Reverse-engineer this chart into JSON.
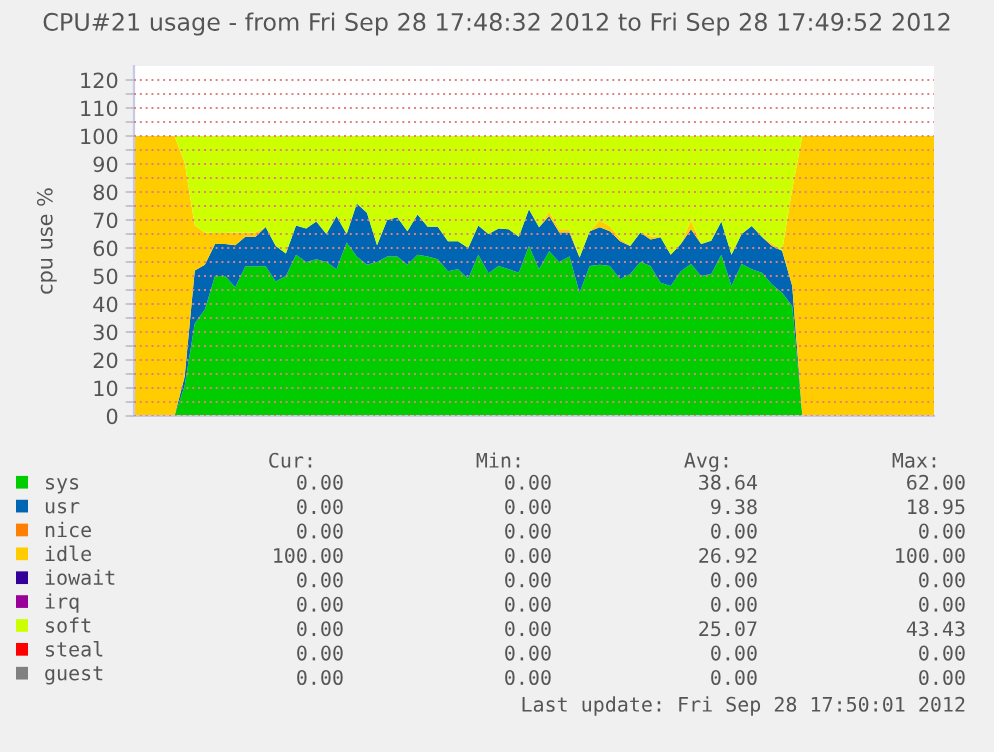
{
  "chart_data": {
    "type": "area",
    "stacked": true,
    "title": "CPU#21 usage - from Fri Sep 28 17:48:32 2012 to Fri Sep 28 17:49:52 2012",
    "ylabel": "cpu use %",
    "categories": [
      null,
      null,
      null,
      null,
      null,
      null,
      null,
      null,
      null,
      null,
      null,
      null,
      null,
      null,
      null,
      null,
      null,
      null,
      null,
      null,
      null,
      null,
      null,
      null,
      null,
      null,
      null,
      null,
      null,
      null,
      null,
      null,
      null,
      null,
      null,
      null,
      null,
      null,
      null,
      null,
      null,
      null,
      null,
      null,
      null,
      null,
      null,
      null,
      null,
      null,
      null,
      null,
      null,
      null,
      null,
      null,
      null,
      null,
      null,
      null,
      null,
      null,
      null,
      null,
      null,
      null,
      null,
      null,
      null,
      null,
      null,
      null,
      null,
      null,
      null,
      null,
      null,
      null,
      null,
      null
    ],
    "ylim": [
      0,
      125
    ],
    "yticks": [
      0,
      {
        "value": 5,
        "label": null
      },
      10,
      {
        "value": 15,
        "label": null
      },
      20,
      {
        "value": 25,
        "label": null
      },
      30,
      {
        "value": 35,
        "label": null
      },
      40,
      {
        "value": 45,
        "label": null
      },
      50,
      {
        "value": 55,
        "label": null
      },
      60,
      {
        "value": 65,
        "label": null
      },
      70,
      {
        "value": 75,
        "label": null
      },
      80,
      {
        "value": 85,
        "label": null
      },
      90,
      {
        "value": 95,
        "label": null
      },
      100,
      {
        "value": 105,
        "label": null
      },
      110,
      {
        "value": 115,
        "label": null
      },
      120
    ],
    "tick_labels": "y",
    "grid": "y",
    "legend": "bottom",
    "series": [
      {
        "name": "sys",
        "color": "#00cc00",
        "values": [
          0,
          0,
          0,
          0,
          0,
          10.7,
          33,
          38,
          50,
          50,
          46,
          53.5,
          53.5,
          53.5,
          48,
          50,
          57.6,
          55,
          56,
          55,
          52.4,
          62,
          57,
          54,
          55,
          57,
          57,
          54,
          57.6,
          57,
          56,
          51.7,
          52.4,
          49,
          57.6,
          51,
          53.6,
          52.4,
          51.2,
          60.7,
          52.4,
          58.8,
          55,
          57,
          44,
          53.6,
          54,
          53.6,
          48.8,
          50.7,
          55,
          53.6,
          47.6,
          46.4,
          51.7,
          54.3,
          50,
          50.7,
          57.6,
          46.4,
          54.3,
          52.4,
          51.2,
          47,
          44,
          39.3,
          0,
          0,
          0,
          0,
          0,
          0,
          0,
          0,
          0,
          0,
          0,
          0,
          0,
          0
        ]
      },
      {
        "name": "usr",
        "color": "#0066b3",
        "values": [
          0,
          0,
          0,
          0,
          0,
          3.3,
          19,
          16,
          11.4,
          11.4,
          15,
          10.5,
          10.5,
          14,
          12.7,
          8,
          10.4,
          12,
          13.5,
          10,
          19,
          3,
          18.9,
          18.6,
          6,
          13,
          14,
          12,
          14.4,
          10.6,
          11.6,
          10.7,
          10,
          11,
          10.4,
          14,
          13.4,
          14.3,
          12.8,
          13.1,
          15,
          12.6,
          10.5,
          8.5,
          12.6,
          12.4,
          13.4,
          12.4,
          13.6,
          10,
          10.5,
          9.4,
          16.2,
          11.2,
          9.7,
          12.4,
          11.4,
          11.9,
          11.9,
          11.2,
          10.7,
          15.5,
          12.8,
          13.7,
          15,
          7.1,
          0,
          0,
          0,
          0,
          0,
          0,
          0,
          0,
          0,
          0,
          0,
          0,
          0,
          0
        ]
      },
      {
        "name": "nice",
        "color": "#ff8000",
        "values": [
          null,
          null,
          null,
          null,
          null,
          null,
          null,
          null,
          null,
          null,
          null,
          null,
          null,
          null,
          null,
          null,
          null,
          null,
          null,
          null,
          null,
          null,
          null,
          null,
          null,
          null,
          null,
          null,
          null,
          null,
          null,
          null,
          null,
          null,
          null,
          null,
          null,
          null,
          null,
          null,
          null,
          null,
          null,
          null,
          null,
          null,
          null,
          null,
          null,
          null,
          null,
          null,
          null,
          null,
          null,
          null,
          null,
          null,
          null,
          null,
          null,
          null,
          null,
          null,
          null,
          null,
          null,
          null,
          null,
          null,
          null,
          null,
          null,
          null,
          null,
          null,
          null,
          null,
          null,
          null
        ]
      },
      {
        "name": "idle",
        "color": "#ffcc00",
        "values": [
          100,
          100,
          100,
          100,
          100,
          76.5,
          16,
          11.5,
          4,
          4,
          4.5,
          1.5,
          1.5,
          0,
          0,
          0,
          0,
          0,
          0,
          0,
          0,
          0,
          0,
          0,
          0,
          0,
          0,
          0,
          0,
          0,
          0,
          0,
          0,
          0,
          0,
          0,
          0,
          0,
          0,
          0,
          0,
          1.6,
          1.2,
          1.2,
          0,
          0,
          2.4,
          1.8,
          1,
          0,
          0,
          1.2,
          0,
          0,
          0,
          3.1,
          0,
          0,
          0,
          0,
          0,
          0,
          0,
          1,
          0,
          34.6,
          100,
          100,
          100,
          100,
          100,
          100,
          100,
          100,
          100,
          100,
          100,
          100,
          100,
          100
        ]
      },
      {
        "name": "iowait",
        "color": "#330099",
        "values": [
          null,
          null,
          null,
          null,
          null,
          null,
          null,
          null,
          null,
          null,
          null,
          null,
          null,
          null,
          null,
          null,
          null,
          null,
          null,
          null,
          null,
          null,
          null,
          null,
          null,
          null,
          null,
          null,
          null,
          null,
          null,
          null,
          null,
          null,
          null,
          null,
          null,
          null,
          null,
          null,
          null,
          null,
          null,
          null,
          null,
          null,
          null,
          null,
          null,
          null,
          null,
          null,
          null,
          null,
          null,
          null,
          null,
          null,
          null,
          null,
          null,
          null,
          null,
          null,
          null,
          null,
          null,
          null,
          null,
          null,
          null,
          null,
          null,
          null,
          null,
          null,
          null,
          null,
          null,
          null
        ]
      },
      {
        "name": "irq",
        "color": "#990099",
        "values": [
          null,
          null,
          null,
          null,
          null,
          null,
          null,
          null,
          null,
          null,
          null,
          null,
          null,
          null,
          null,
          null,
          null,
          null,
          null,
          null,
          null,
          null,
          null,
          null,
          null,
          null,
          null,
          null,
          null,
          null,
          null,
          null,
          null,
          null,
          null,
          null,
          null,
          null,
          null,
          null,
          null,
          null,
          null,
          null,
          null,
          null,
          null,
          null,
          null,
          null,
          null,
          null,
          null,
          null,
          null,
          null,
          null,
          null,
          null,
          null,
          null,
          null,
          null,
          null,
          null,
          null,
          null,
          null,
          null,
          null,
          null,
          null,
          null,
          null,
          null,
          null,
          null,
          null,
          null,
          null
        ]
      },
      {
        "name": "soft",
        "color": "#ccff00",
        "values": [
          0,
          0,
          0,
          0,
          0,
          9.5,
          32,
          34.5,
          34.6,
          34.6,
          34.5,
          34.5,
          34.5,
          32.5,
          39.3,
          42,
          32,
          33,
          30.5,
          35,
          28.6,
          35,
          24.1,
          27.4,
          39,
          30,
          29,
          34,
          28,
          32.4,
          32.4,
          37.6,
          37.6,
          40,
          32,
          35,
          33,
          33.3,
          36,
          26.2,
          32.6,
          27,
          33.3,
          33.3,
          43.4,
          34,
          30.2,
          32.2,
          36.6,
          39.3,
          34.5,
          35.8,
          36.2,
          42.4,
          38.6,
          30.2,
          38.6,
          37.4,
          30.5,
          42.4,
          35,
          32.1,
          36,
          38.3,
          41,
          19,
          0,
          0,
          0,
          0,
          0,
          0,
          0,
          0,
          0,
          0,
          0,
          0,
          0,
          0
        ]
      },
      {
        "name": "steal",
        "color": "#ff0000",
        "values": [
          null,
          null,
          null,
          null,
          null,
          null,
          null,
          null,
          null,
          null,
          null,
          null,
          null,
          null,
          null,
          null,
          null,
          null,
          null,
          null,
          null,
          null,
          null,
          null,
          null,
          null,
          null,
          null,
          null,
          null,
          null,
          null,
          null,
          null,
          null,
          null,
          null,
          null,
          null,
          null,
          null,
          null,
          null,
          null,
          null,
          null,
          null,
          null,
          null,
          null,
          null,
          null,
          null,
          null,
          null,
          null,
          null,
          null,
          null,
          null,
          null,
          null,
          null,
          null,
          null,
          null,
          null,
          null,
          null,
          null,
          null,
          null,
          null,
          null,
          null,
          null,
          null,
          null,
          null,
          null
        ]
      },
      {
        "name": "guest",
        "color": "#808080",
        "values": [
          null,
          null,
          null,
          null,
          null,
          null,
          null,
          null,
          null,
          null,
          null,
          null,
          null,
          null,
          null,
          null,
          null,
          null,
          null,
          null,
          null,
          null,
          null,
          null,
          null,
          null,
          null,
          null,
          null,
          null,
          null,
          null,
          null,
          null,
          null,
          null,
          null,
          null,
          null,
          null,
          null,
          null,
          null,
          null,
          null,
          null,
          null,
          null,
          null,
          null,
          null,
          null,
          null,
          null,
          null,
          null,
          null,
          null,
          null,
          null,
          null,
          null,
          null,
          null,
          null,
          null,
          null,
          null,
          null,
          null,
          null,
          null,
          null,
          null,
          null,
          null,
          null,
          null,
          null,
          null
        ]
      }
    ],
    "annotations": [
      "Cur:",
      "Min:",
      "Avg:",
      "Max:",
      "0.00",
      "0.00",
      "38.64",
      "62.00",
      "0.00",
      "0.00",
      "9.38",
      "18.95",
      "0.00",
      "0.00",
      "0.00",
      "0.00",
      "100.00",
      "0.00",
      "26.92",
      "100.00",
      "0.00",
      "0.00",
      "0.00",
      "0.00",
      "0.00",
      "0.00",
      "0.00",
      "0.00",
      "0.00",
      "0.00",
      "25.07",
      "43.43",
      "0.00",
      "0.00",
      "0.00",
      "0.00",
      "0.00",
      "0.00",
      "0.00",
      "0.00",
      "Last update: Fri Sep 28 17:50:01 2012"
    ]
  }
}
